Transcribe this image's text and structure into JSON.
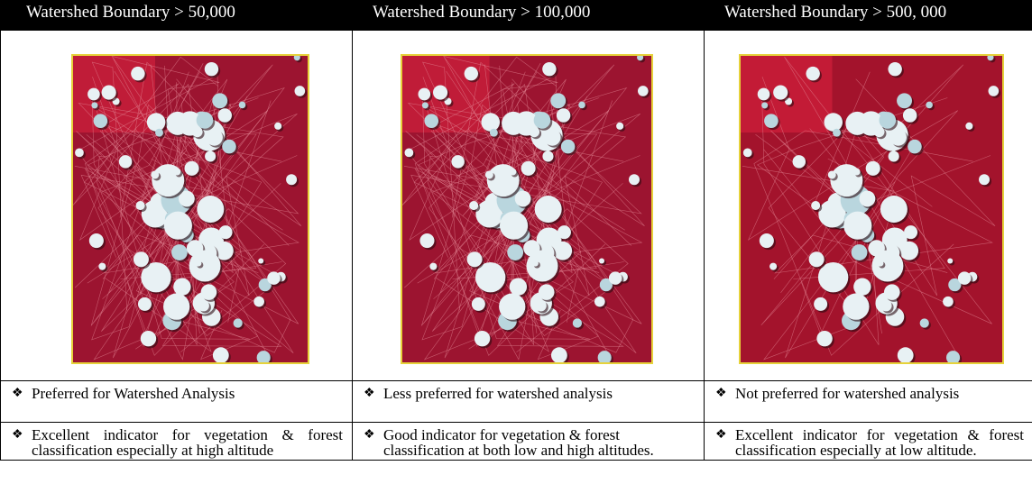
{
  "table": {
    "headers": [
      "Watershed Boundary > 50,000",
      "Watershed Boundary > 100,000",
      "Watershed Boundary > 500, 000"
    ],
    "rows": [
      [
        "Preferred for Watershed Analysis",
        "Less preferred for watershed analysis",
        "Not preferred for watershed analysis"
      ],
      [
        "Excellent indicator for vegetation & forest classification especially at high altitude",
        "Good indicator for vegetation & forest classification at both low and high altitudes.",
        "Excellent indicator for vegetation & forest classification especially at low altitude."
      ]
    ]
  }
}
